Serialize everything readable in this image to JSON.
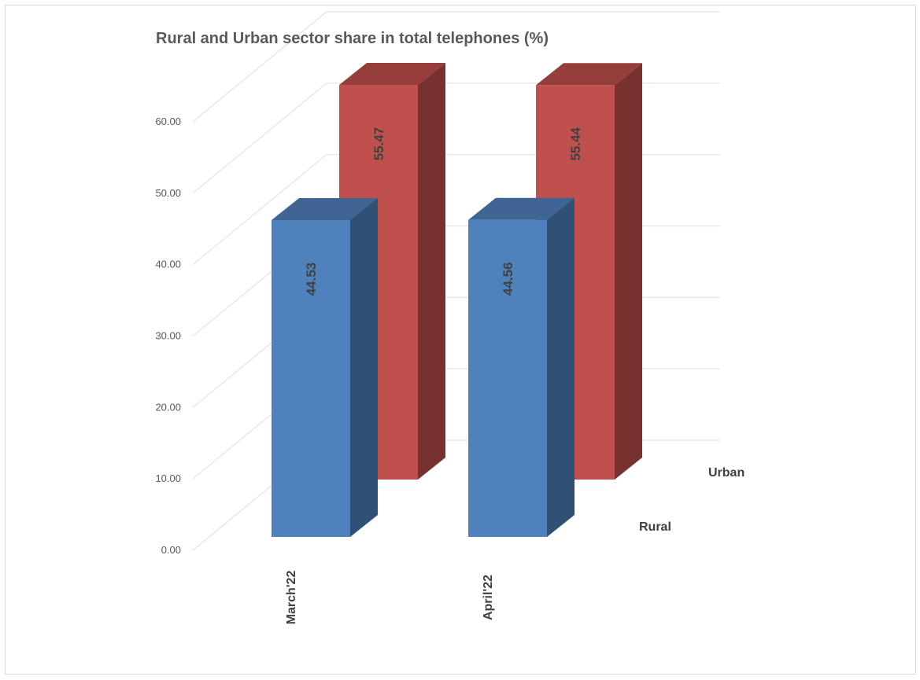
{
  "chart_data": {
    "type": "bar",
    "title": "Rural and Urban sector share in total telephones (%)",
    "categories": [
      "March'22",
      "April'22"
    ],
    "series": [
      {
        "name": "Rural",
        "values": [
          44.53,
          44.56
        ],
        "color": "#4F81BD"
      },
      {
        "name": "Urban",
        "values": [
          55.47,
          55.44
        ],
        "color": "#C0504D"
      }
    ],
    "y_ticks": [
      "0.00",
      "10.00",
      "20.00",
      "30.00",
      "40.00",
      "50.00",
      "60.00"
    ],
    "ylim": [
      0,
      60
    ],
    "grid": true,
    "legend": "depth-axis series labels on right",
    "chart_style": "3d-column"
  }
}
